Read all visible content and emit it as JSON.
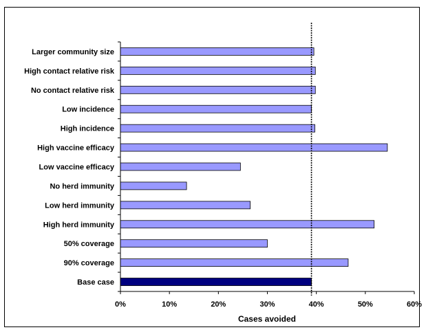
{
  "chart_data": {
    "type": "bar",
    "orientation": "horizontal",
    "categories": [
      "Larger community size",
      "High contact relative risk",
      "No contact relative risk",
      "Low incidence",
      "High incidence",
      "High vaccine efficacy",
      "Low vaccine efficacy",
      "No herd immunity",
      "Low herd immunity",
      "High herd immunity",
      "50% coverage",
      "90% coverage",
      "Base case"
    ],
    "values": [
      39.5,
      39.8,
      39.8,
      39.0,
      39.7,
      54.5,
      24.5,
      13.5,
      26.5,
      51.8,
      30.0,
      46.5,
      39.0
    ],
    "highlight_category": "Base case",
    "reference_line": 39.0,
    "xlabel": "Cases avoided",
    "ylabel": "",
    "title": "",
    "xlim": [
      0,
      60
    ],
    "xticks": [
      "0%",
      "10%",
      "20%",
      "30%",
      "40%",
      "50%",
      "60%"
    ],
    "xtick_values": [
      0,
      10,
      20,
      30,
      40,
      50,
      60
    ],
    "grid": false,
    "legend": "none",
    "colors": {
      "bar": "#9999ff",
      "highlight": "#000080",
      "bar_stroke": "#000000",
      "reference_line": "#000000"
    }
  }
}
